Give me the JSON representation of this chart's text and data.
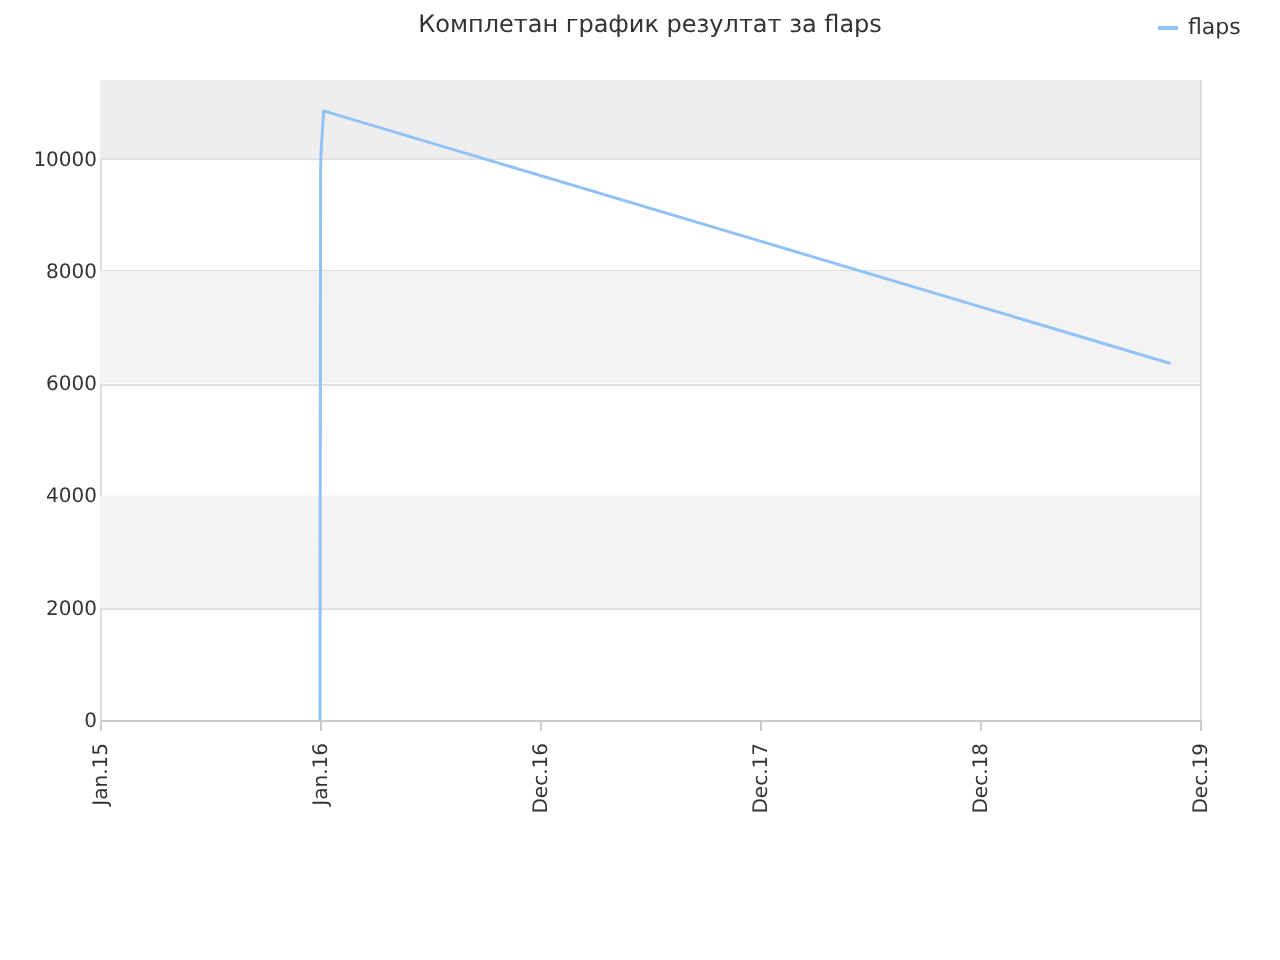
{
  "chart_data": {
    "type": "line",
    "title": "Комплетан график резултат за flaps",
    "x": [
      "2016-01-01",
      "2016-01-02",
      "2016-01-03",
      "2016-01-07",
      "2019-11-12"
    ],
    "series": [
      {
        "name": "flaps",
        "color": "#90c2f5",
        "values": [
          0,
          9850,
          10150,
          10850,
          6350
        ]
      }
    ],
    "xlim": [
      "2015-01-01",
      "2019-12-31"
    ],
    "xticks": [
      {
        "value": "2015-01-01",
        "label": "Jan.15"
      },
      {
        "value": "2016-01-01",
        "label": "Jan.16"
      },
      {
        "value": "2016-12-31",
        "label": "Dec.16"
      },
      {
        "value": "2017-12-31",
        "label": "Dec.17"
      },
      {
        "value": "2018-12-31",
        "label": "Dec.18"
      },
      {
        "value": "2019-12-31",
        "label": "Dec.19"
      }
    ],
    "ylim": [
      0,
      11400
    ],
    "yticks": [
      0,
      2000,
      4000,
      6000,
      8000,
      10000
    ],
    "bands": [
      {
        "axis": "y",
        "from": 2000,
        "to": 4000,
        "color": "#f3f3f3"
      },
      {
        "axis": "y",
        "from": 6000,
        "to": 8000,
        "color": "#f3f3f3"
      },
      {
        "axis": "y",
        "from": 10000,
        "to": 11400,
        "color": "#ededed"
      }
    ],
    "grid": "y",
    "legend": "top right",
    "marker": "none",
    "line_style": "solid"
  }
}
